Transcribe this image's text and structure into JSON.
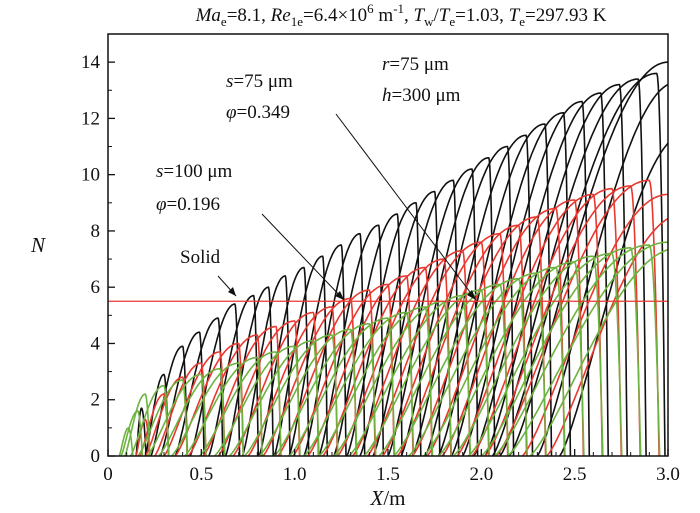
{
  "chart_data": {
    "type": "line",
    "title": {
      "Ma_sym": "Ma",
      "Ma_sub": "e",
      "Ma_val": "=8.1, ",
      "Re_sym": "Re",
      "Re_sub": "1e",
      "Re_val": "=6.4×10",
      "Re_exp": "6",
      "Re_unit": " m",
      "Re_unit_exp": "-1",
      "Re_sep": ", ",
      "Tw_sym": "T",
      "Tw_sub": "w",
      "Tw_slash": "/",
      "Te_sym": "T",
      "Te_sub": "e",
      "Tratio_val": "=1.03, ",
      "Te2_sym": "T",
      "Te2_sub": "e",
      "Te2_val": "=297.93 K"
    },
    "xlabel": {
      "var": "X",
      "unit": "/m"
    },
    "ylabel": "N",
    "xlim": [
      0,
      3.0
    ],
    "ylim": [
      0,
      15
    ],
    "x_ticks": [
      0,
      0.5,
      1.0,
      1.5,
      2.0,
      2.5,
      3.0
    ],
    "x_tick_labels": [
      "0",
      "0.5",
      "1.0",
      "1.5",
      "2.0",
      "2.5",
      "3.0"
    ],
    "y_ticks": [
      0,
      2,
      4,
      6,
      8,
      10,
      12,
      14
    ],
    "y_tick_labels": [
      "0",
      "2",
      "4",
      "6",
      "8",
      "10",
      "12",
      "14"
    ],
    "reference_line": {
      "y": 5.5,
      "color": "#e8382f"
    },
    "series": [
      {
        "name": "Solid",
        "color": "#111111",
        "curves": [
          {
            "x0": 0.15,
            "x1": 0.18,
            "peak": 1.7,
            "width": 0.05
          },
          {
            "x0": 0.2,
            "x1": 0.3,
            "peak": 2.9,
            "width": 0.1
          },
          {
            "x0": 0.23,
            "x1": 0.4,
            "peak": 3.9,
            "width": 0.15
          },
          {
            "x0": 0.28,
            "x1": 0.49,
            "peak": 4.4,
            "width": 0.19
          },
          {
            "x0": 0.36,
            "x1": 0.59,
            "peak": 4.9,
            "width": 0.21
          },
          {
            "x0": 0.44,
            "x1": 0.68,
            "peak": 5.4,
            "width": 0.23
          },
          {
            "x0": 0.54,
            "x1": 0.78,
            "peak": 5.7,
            "width": 0.23
          },
          {
            "x0": 0.63,
            "x1": 0.86,
            "peak": 6.0,
            "width": 0.23
          },
          {
            "x0": 0.72,
            "x1": 0.95,
            "peak": 6.4,
            "width": 0.24
          },
          {
            "x0": 0.81,
            "x1": 1.05,
            "peak": 6.7,
            "width": 0.25
          },
          {
            "x0": 0.89,
            "x1": 1.15,
            "peak": 7.1,
            "width": 0.27
          },
          {
            "x0": 0.97,
            "x1": 1.25,
            "peak": 7.5,
            "width": 0.29
          },
          {
            "x0": 1.05,
            "x1": 1.35,
            "peak": 7.9,
            "width": 0.31
          },
          {
            "x0": 1.13,
            "x1": 1.45,
            "peak": 8.2,
            "width": 0.33
          },
          {
            "x0": 1.21,
            "x1": 1.55,
            "peak": 8.6,
            "width": 0.35
          },
          {
            "x0": 1.28,
            "x1": 1.65,
            "peak": 9.0,
            "width": 0.37
          },
          {
            "x0": 1.35,
            "x1": 1.75,
            "peak": 9.4,
            "width": 0.39
          },
          {
            "x0": 1.42,
            "x1": 1.85,
            "peak": 9.8,
            "width": 0.41
          },
          {
            "x0": 1.5,
            "x1": 1.95,
            "peak": 10.2,
            "width": 0.43
          },
          {
            "x0": 1.57,
            "x1": 2.04,
            "peak": 10.6,
            "width": 0.45
          },
          {
            "x0": 1.63,
            "x1": 2.14,
            "peak": 11.0,
            "width": 0.47
          },
          {
            "x0": 1.7,
            "x1": 2.24,
            "peak": 11.4,
            "width": 0.49
          },
          {
            "x0": 1.77,
            "x1": 2.34,
            "peak": 11.8,
            "width": 0.51
          },
          {
            "x0": 1.84,
            "x1": 2.44,
            "peak": 12.2,
            "width": 0.53
          },
          {
            "x0": 1.9,
            "x1": 2.54,
            "peak": 12.6,
            "width": 0.55
          },
          {
            "x0": 1.96,
            "x1": 2.64,
            "peak": 12.9,
            "width": 0.57
          },
          {
            "x0": 2.02,
            "x1": 2.74,
            "peak": 13.2,
            "width": 0.59
          },
          {
            "x0": 2.06,
            "x1": 2.84,
            "peak": 13.4,
            "width": 0.61
          },
          {
            "x0": 2.1,
            "x1": 2.94,
            "peak": 13.6,
            "width": 0.63
          },
          {
            "x0": 2.15,
            "x1": 3.0,
            "peak": 14.0,
            "width": 0.65
          },
          {
            "x0": 2.3,
            "x1": 3.05,
            "peak": 13.3,
            "width": 0.62
          },
          {
            "x0": 2.42,
            "x1": 3.1,
            "peak": 11.5,
            "width": 0.58
          }
        ]
      },
      {
        "name": "s=100 μm, φ=0.196",
        "color": "#e8382f",
        "curves": [
          {
            "x0": 0.15,
            "x1": 0.2,
            "peak": 1.3,
            "width": 0.05
          },
          {
            "x0": 0.17,
            "x1": 0.3,
            "peak": 2.2,
            "width": 0.1
          },
          {
            "x0": 0.2,
            "x1": 0.4,
            "peak": 2.8,
            "width": 0.16
          },
          {
            "x0": 0.25,
            "x1": 0.5,
            "peak": 3.3,
            "width": 0.21
          },
          {
            "x0": 0.3,
            "x1": 0.6,
            "peak": 3.7,
            "width": 0.26
          },
          {
            "x0": 0.36,
            "x1": 0.7,
            "peak": 4.0,
            "width": 0.3
          },
          {
            "x0": 0.43,
            "x1": 0.8,
            "peak": 4.3,
            "width": 0.33
          },
          {
            "x0": 0.51,
            "x1": 0.9,
            "peak": 4.6,
            "width": 0.35
          },
          {
            "x0": 0.59,
            "x1": 1.0,
            "peak": 4.8,
            "width": 0.37
          },
          {
            "x0": 0.67,
            "x1": 1.1,
            "peak": 5.1,
            "width": 0.39
          },
          {
            "x0": 0.75,
            "x1": 1.2,
            "peak": 5.3,
            "width": 0.41
          },
          {
            "x0": 0.83,
            "x1": 1.3,
            "peak": 5.6,
            "width": 0.43
          },
          {
            "x0": 0.91,
            "x1": 1.4,
            "peak": 5.9,
            "width": 0.45
          },
          {
            "x0": 0.99,
            "x1": 1.5,
            "peak": 6.1,
            "width": 0.47
          },
          {
            "x0": 1.07,
            "x1": 1.6,
            "peak": 6.4,
            "width": 0.49
          },
          {
            "x0": 1.15,
            "x1": 1.7,
            "peak": 6.7,
            "width": 0.51
          },
          {
            "x0": 1.23,
            "x1": 1.8,
            "peak": 7.0,
            "width": 0.53
          },
          {
            "x0": 1.31,
            "x1": 1.9,
            "peak": 7.3,
            "width": 0.55
          },
          {
            "x0": 1.39,
            "x1": 2.0,
            "peak": 7.6,
            "width": 0.57
          },
          {
            "x0": 1.47,
            "x1": 2.1,
            "peak": 7.9,
            "width": 0.59
          },
          {
            "x0": 1.55,
            "x1": 2.2,
            "peak": 8.2,
            "width": 0.61
          },
          {
            "x0": 1.63,
            "x1": 2.3,
            "peak": 8.5,
            "width": 0.63
          },
          {
            "x0": 1.71,
            "x1": 2.4,
            "peak": 8.8,
            "width": 0.65
          },
          {
            "x0": 1.79,
            "x1": 2.5,
            "peak": 9.1,
            "width": 0.67
          },
          {
            "x0": 1.87,
            "x1": 2.6,
            "peak": 9.3,
            "width": 0.69
          },
          {
            "x0": 1.95,
            "x1": 2.7,
            "peak": 9.5,
            "width": 0.71
          },
          {
            "x0": 2.02,
            "x1": 2.8,
            "peak": 9.6,
            "width": 0.73
          },
          {
            "x0": 2.08,
            "x1": 2.9,
            "peak": 9.8,
            "width": 0.75
          },
          {
            "x0": 2.22,
            "x1": 3.0,
            "peak": 9.3,
            "width": 0.72
          },
          {
            "x0": 2.35,
            "x1": 3.08,
            "peak": 8.6,
            "width": 0.68
          }
        ]
      },
      {
        "name": "s=75 μm, φ=0.349",
        "color": "#6db33f",
        "curves": [
          {
            "x0": 0.06,
            "x1": 0.11,
            "peak": 1.0,
            "width": 0.05
          },
          {
            "x0": 0.07,
            "x1": 0.16,
            "peak": 1.6,
            "width": 0.08
          },
          {
            "x0": 0.09,
            "x1": 0.2,
            "peak": 2.2,
            "width": 0.1
          },
          {
            "x0": 0.12,
            "x1": 0.3,
            "peak": 2.5,
            "width": 0.16
          },
          {
            "x0": 0.16,
            "x1": 0.4,
            "peak": 2.7,
            "width": 0.22
          },
          {
            "x0": 0.21,
            "x1": 0.5,
            "peak": 2.9,
            "width": 0.27
          },
          {
            "x0": 0.27,
            "x1": 0.6,
            "peak": 3.1,
            "width": 0.31
          },
          {
            "x0": 0.34,
            "x1": 0.7,
            "peak": 3.3,
            "width": 0.34
          },
          {
            "x0": 0.41,
            "x1": 0.8,
            "peak": 3.5,
            "width": 0.37
          },
          {
            "x0": 0.49,
            "x1": 0.9,
            "peak": 3.7,
            "width": 0.39
          },
          {
            "x0": 0.57,
            "x1": 1.0,
            "peak": 3.9,
            "width": 0.41
          },
          {
            "x0": 0.65,
            "x1": 1.1,
            "peak": 4.1,
            "width": 0.43
          },
          {
            "x0": 0.73,
            "x1": 1.2,
            "peak": 4.3,
            "width": 0.45
          },
          {
            "x0": 0.81,
            "x1": 1.3,
            "peak": 4.5,
            "width": 0.47
          },
          {
            "x0": 0.89,
            "x1": 1.4,
            "peak": 4.7,
            "width": 0.49
          },
          {
            "x0": 0.97,
            "x1": 1.5,
            "peak": 4.9,
            "width": 0.51
          },
          {
            "x0": 1.05,
            "x1": 1.6,
            "peak": 5.1,
            "width": 0.53
          },
          {
            "x0": 1.13,
            "x1": 1.7,
            "peak": 5.3,
            "width": 0.55
          },
          {
            "x0": 1.21,
            "x1": 1.8,
            "peak": 5.5,
            "width": 0.57
          },
          {
            "x0": 1.29,
            "x1": 1.9,
            "peak": 5.7,
            "width": 0.59
          },
          {
            "x0": 1.37,
            "x1": 2.0,
            "peak": 5.9,
            "width": 0.61
          },
          {
            "x0": 1.45,
            "x1": 2.1,
            "peak": 6.1,
            "width": 0.63
          },
          {
            "x0": 1.53,
            "x1": 2.2,
            "peak": 6.3,
            "width": 0.65
          },
          {
            "x0": 1.61,
            "x1": 2.3,
            "peak": 6.5,
            "width": 0.67
          },
          {
            "x0": 1.69,
            "x1": 2.4,
            "peak": 6.7,
            "width": 0.69
          },
          {
            "x0": 1.77,
            "x1": 2.5,
            "peak": 6.9,
            "width": 0.71
          },
          {
            "x0": 1.85,
            "x1": 2.6,
            "peak": 7.1,
            "width": 0.73
          },
          {
            "x0": 1.93,
            "x1": 2.7,
            "peak": 7.2,
            "width": 0.75
          },
          {
            "x0": 2.0,
            "x1": 2.8,
            "peak": 7.4,
            "width": 0.77
          },
          {
            "x0": 2.07,
            "x1": 2.9,
            "peak": 7.5,
            "width": 0.79
          },
          {
            "x0": 2.14,
            "x1": 3.0,
            "peak": 7.6,
            "width": 0.81
          },
          {
            "x0": 2.26,
            "x1": 3.06,
            "peak": 7.4,
            "width": 0.78
          }
        ]
      }
    ],
    "annotations": [
      {
        "id": "solid",
        "lines": [
          "Solid"
        ]
      },
      {
        "id": "s100",
        "lines": [
          "s=100 μm",
          "φ=0.196"
        ]
      },
      {
        "id": "s75",
        "lines": [
          "s=75 μm",
          "φ=0.349"
        ]
      },
      {
        "id": "params",
        "lines": [
          "r=75 μm",
          "h=300 μm"
        ]
      }
    ],
    "grid": false
  }
}
